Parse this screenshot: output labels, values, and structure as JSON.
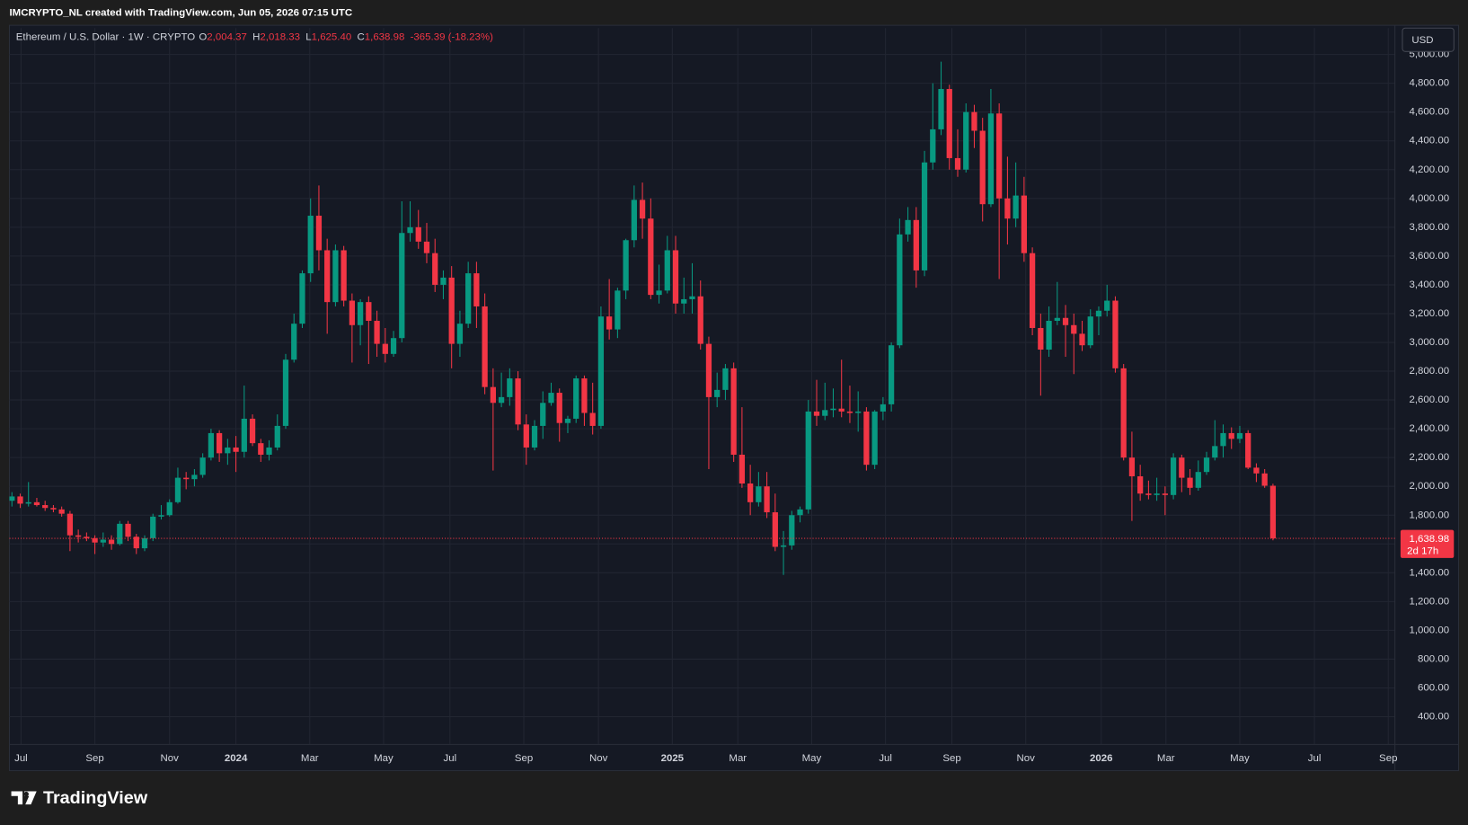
{
  "header": {
    "caption": "IMCRYPTO_NL created with TradingView.com, Jun 05, 2026 07:15 UTC"
  },
  "chart_data": {
    "type": "candlestick",
    "legend": {
      "symbol": "Ethereum / U.S. Dollar · 1W · CRYPTO",
      "o_label": "O",
      "o_value": "2,004.37",
      "h_label": "H",
      "h_value": "2,018.33",
      "l_label": "L",
      "l_value": "1,625.40",
      "c_label": "C",
      "c_value": "1,638.98",
      "change": "-365.39 (-18.23%)"
    },
    "currency": "USD",
    "open": [
      1900,
      1930,
      1880,
      1890,
      1870,
      1850,
      1840,
      1810,
      1660,
      1650,
      1640,
      1610,
      1630,
      1600,
      1740,
      1650,
      1570,
      1640,
      1790,
      1800,
      1890,
      2060,
      2050,
      2080,
      2200,
      2370,
      2230,
      2270,
      2240,
      2470,
      2300,
      2220,
      2270,
      2420,
      2880,
      3130,
      3480,
      3880,
      3640,
      3280,
      3640,
      3290,
      3120,
      3280,
      3150,
      2990,
      2920,
      3030,
      3760,
      3800,
      3700,
      3620,
      3400,
      3450,
      2990,
      3130,
      3480,
      3250,
      2690,
      2580,
      2620,
      2750,
      2430,
      2270,
      2420,
      2580,
      2650,
      2440,
      2470,
      2750,
      2510,
      2420,
      3180,
      3090,
      3360,
      3710,
      3990,
      3860,
      3330,
      3360,
      3640,
      3270,
      3300,
      3320,
      2990,
      2620,
      2670,
      2820,
      2220,
      2020,
      1890,
      2000,
      1820,
      1580,
      1590,
      1800,
      1840,
      2520,
      2490,
      2530,
      2540,
      2520,
      2510,
      2520,
      2150,
      2520,
      2570,
      2980,
      3750,
      3850,
      3500,
      4250,
      4480,
      4760,
      4280,
      4200,
      4600,
      4470,
      3960,
      4590,
      4000,
      3860,
      4020,
      3620,
      3100,
      2950,
      3150,
      3170,
      3120,
      3060,
      2980,
      3180,
      3220,
      3290,
      2820,
      2200,
      2070,
      1950,
      1940,
      1950,
      1940,
      2200,
      2060,
      1990,
      2100,
      2200,
      2280,
      2370,
      2330,
      2370,
      2130,
      2090,
      2004.37
    ],
    "high": [
      1960,
      1950,
      2030,
      1920,
      1900,
      1870,
      1860,
      1830,
      1700,
      1680,
      1660,
      1680,
      1660,
      1760,
      1760,
      1670,
      1660,
      1810,
      1870,
      1910,
      2130,
      2100,
      2120,
      2230,
      2400,
      2390,
      2330,
      2350,
      2700,
      2500,
      2330,
      2320,
      2500,
      2920,
      3200,
      3500,
      4000,
      4090,
      3720,
      3680,
      3670,
      3340,
      3300,
      3320,
      3220,
      3100,
      3080,
      3980,
      3980,
      3920,
      3830,
      3720,
      3500,
      3530,
      3220,
      3560,
      3560,
      3340,
      2820,
      2790,
      2820,
      2800,
      2500,
      2460,
      2660,
      2720,
      2680,
      2490,
      2770,
      2770,
      2720,
      3250,
      3440,
      3380,
      3720,
      4090,
      4110,
      4000,
      3540,
      3740,
      3740,
      3450,
      3550,
      3430,
      3040,
      2790,
      2850,
      2860,
      2550,
      2150,
      2100,
      2100,
      1950,
      1690,
      1830,
      1860,
      2600,
      2740,
      2720,
      2680,
      2880,
      2700,
      2660,
      2550,
      2530,
      2620,
      3000,
      3860,
      3940,
      3940,
      4330,
      4800,
      4950,
      4790,
      4480,
      4660,
      4650,
      4560,
      4760,
      4660,
      4290,
      4250,
      4150,
      3660,
      3200,
      3250,
      3420,
      3260,
      3200,
      3150,
      3230,
      3250,
      3400,
      3320,
      2850,
      2380,
      2150,
      2040,
      2060,
      2000,
      2230,
      2220,
      2120,
      2180,
      2240,
      2460,
      2430,
      2410,
      2420,
      2390,
      2160,
      2120,
      2018.33
    ],
    "low": [
      1860,
      1850,
      1860,
      1860,
      1830,
      1820,
      1790,
      1550,
      1610,
      1620,
      1530,
      1580,
      1560,
      1590,
      1620,
      1530,
      1550,
      1620,
      1770,
      1790,
      1880,
      1980,
      2000,
      2060,
      2180,
      2170,
      2150,
      2100,
      2200,
      2280,
      2170,
      2180,
      2250,
      2400,
      2860,
      3100,
      3420,
      3500,
      3060,
      3250,
      3250,
      2860,
      2980,
      2850,
      2900,
      2860,
      2900,
      3000,
      3700,
      3650,
      3550,
      3350,
      3300,
      2820,
      2900,
      3100,
      3100,
      2640,
      2110,
      2550,
      2560,
      2390,
      2150,
      2250,
      2330,
      2560,
      2310,
      2370,
      2440,
      2420,
      2360,
      2400,
      3020,
      3030,
      3300,
      3660,
      3720,
      3300,
      3270,
      3340,
      3200,
      3200,
      3200,
      2950,
      2120,
      2550,
      2600,
      2170,
      1990,
      1800,
      1860,
      1780,
      1550,
      1385,
      1560,
      1750,
      1810,
      2420,
      2460,
      2480,
      2480,
      2440,
      2380,
      2110,
      2120,
      2460,
      2520,
      2960,
      3700,
      3380,
      3460,
      4200,
      4440,
      4200,
      4150,
      4180,
      4350,
      3840,
      3940,
      3440,
      3680,
      3800,
      3560,
      3050,
      2630,
      2900,
      3120,
      2900,
      2780,
      2940,
      2960,
      3050,
      3180,
      2790,
      2180,
      1760,
      1900,
      1910,
      1900,
      1800,
      1910,
      1960,
      1940,
      1970,
      2080,
      2180,
      2200,
      2260,
      2300,
      2120,
      2030,
      1990,
      1625.4
    ],
    "close": [
      1930,
      1880,
      1890,
      1870,
      1850,
      1840,
      1810,
      1660,
      1650,
      1640,
      1610,
      1630,
      1600,
      1740,
      1650,
      1570,
      1640,
      1790,
      1800,
      1890,
      2060,
      2050,
      2080,
      2200,
      2370,
      2230,
      2270,
      2240,
      2470,
      2300,
      2220,
      2270,
      2420,
      2880,
      3130,
      3480,
      3880,
      3640,
      3280,
      3640,
      3290,
      3120,
      3280,
      3150,
      2990,
      2920,
      3030,
      3760,
      3800,
      3700,
      3620,
      3400,
      3450,
      2990,
      3130,
      3480,
      3250,
      2690,
      2580,
      2620,
      2750,
      2430,
      2270,
      2420,
      2580,
      2650,
      2440,
      2470,
      2750,
      2510,
      2420,
      3180,
      3090,
      3360,
      3710,
      3990,
      3860,
      3330,
      3360,
      3640,
      3270,
      3300,
      3320,
      2990,
      2620,
      2670,
      2820,
      2220,
      2020,
      1890,
      2000,
      1820,
      1580,
      1590,
      1800,
      1840,
      2520,
      2490,
      2530,
      2540,
      2520,
      2510,
      2520,
      2150,
      2520,
      2570,
      2980,
      3750,
      3850,
      3500,
      4250,
      4480,
      4760,
      4280,
      4200,
      4600,
      4470,
      3960,
      4590,
      4000,
      3860,
      4020,
      3620,
      3100,
      2950,
      3150,
      3170,
      3120,
      3060,
      2980,
      3180,
      3220,
      3290,
      2820,
      2200,
      2070,
      1950,
      1940,
      1950,
      1940,
      2200,
      2060,
      1990,
      2100,
      2200,
      2280,
      2370,
      2330,
      2370,
      2130,
      2090,
      2004.37,
      1638.98
    ],
    "up_color": "#089981",
    "down_color": "#f23645",
    "xlim": [
      -0.3,
      166.7
    ],
    "xticks": [
      {
        "value": 1.1,
        "label": "Jul"
      },
      {
        "value": 10.0,
        "label": "Sep"
      },
      {
        "value": 19.0,
        "label": "Nov"
      },
      {
        "value": 27.0,
        "label": "2024"
      },
      {
        "value": 35.9,
        "label": "Mar"
      },
      {
        "value": 44.8,
        "label": "May"
      },
      {
        "value": 52.8,
        "label": "Jul"
      },
      {
        "value": 61.7,
        "label": "Sep"
      },
      {
        "value": 70.7,
        "label": "Nov"
      },
      {
        "value": 79.6,
        "label": "2025"
      },
      {
        "value": 87.5,
        "label": "Mar"
      },
      {
        "value": 96.4,
        "label": "May"
      },
      {
        "value": 105.3,
        "label": "Jul"
      },
      {
        "value": 113.3,
        "label": "Sep"
      },
      {
        "value": 122.2,
        "label": "Nov"
      },
      {
        "value": 131.3,
        "label": "2026"
      },
      {
        "value": 139.1,
        "label": "Mar"
      },
      {
        "value": 148.0,
        "label": "May"
      },
      {
        "value": 157.0,
        "label": "Jul"
      },
      {
        "value": 165.9,
        "label": "Sep"
      }
    ],
    "ylim": [
      370,
      5040
    ],
    "yticks": [
      {
        "value": 400,
        "label": "400.00"
      },
      {
        "value": 600,
        "label": "600.00"
      },
      {
        "value": 800,
        "label": "800.00"
      },
      {
        "value": 1000,
        "label": "1,000.00"
      },
      {
        "value": 1200,
        "label": "1,200.00"
      },
      {
        "value": 1400,
        "label": "1,400.00"
      },
      {
        "value": 1600,
        "label": "1,600.00"
      },
      {
        "value": 1800,
        "label": "1,800.00"
      },
      {
        "value": 2000,
        "label": "2,000.00"
      },
      {
        "value": 2200,
        "label": "2,200.00"
      },
      {
        "value": 2400,
        "label": "2,400.00"
      },
      {
        "value": 2600,
        "label": "2,600.00"
      },
      {
        "value": 2800,
        "label": "2,800.00"
      },
      {
        "value": 3000,
        "label": "3,000.00"
      },
      {
        "value": 3200,
        "label": "3,200.00"
      },
      {
        "value": 3400,
        "label": "3,400.00"
      },
      {
        "value": 3600,
        "label": "3,600.00"
      },
      {
        "value": 3800,
        "label": "3,800.00"
      },
      {
        "value": 4000,
        "label": "4,000.00"
      },
      {
        "value": 4200,
        "label": "4,200.00"
      },
      {
        "value": 4400,
        "label": "4,400.00"
      },
      {
        "value": 4600,
        "label": "4,600.00"
      },
      {
        "value": 4800,
        "label": "4,800.00"
      },
      {
        "value": 5000,
        "label": "5,000.00"
      }
    ],
    "grid": true,
    "last_price_label": "1,638.98",
    "countdown": "2d 17h"
  },
  "footer": {
    "brand": "TradingView"
  }
}
